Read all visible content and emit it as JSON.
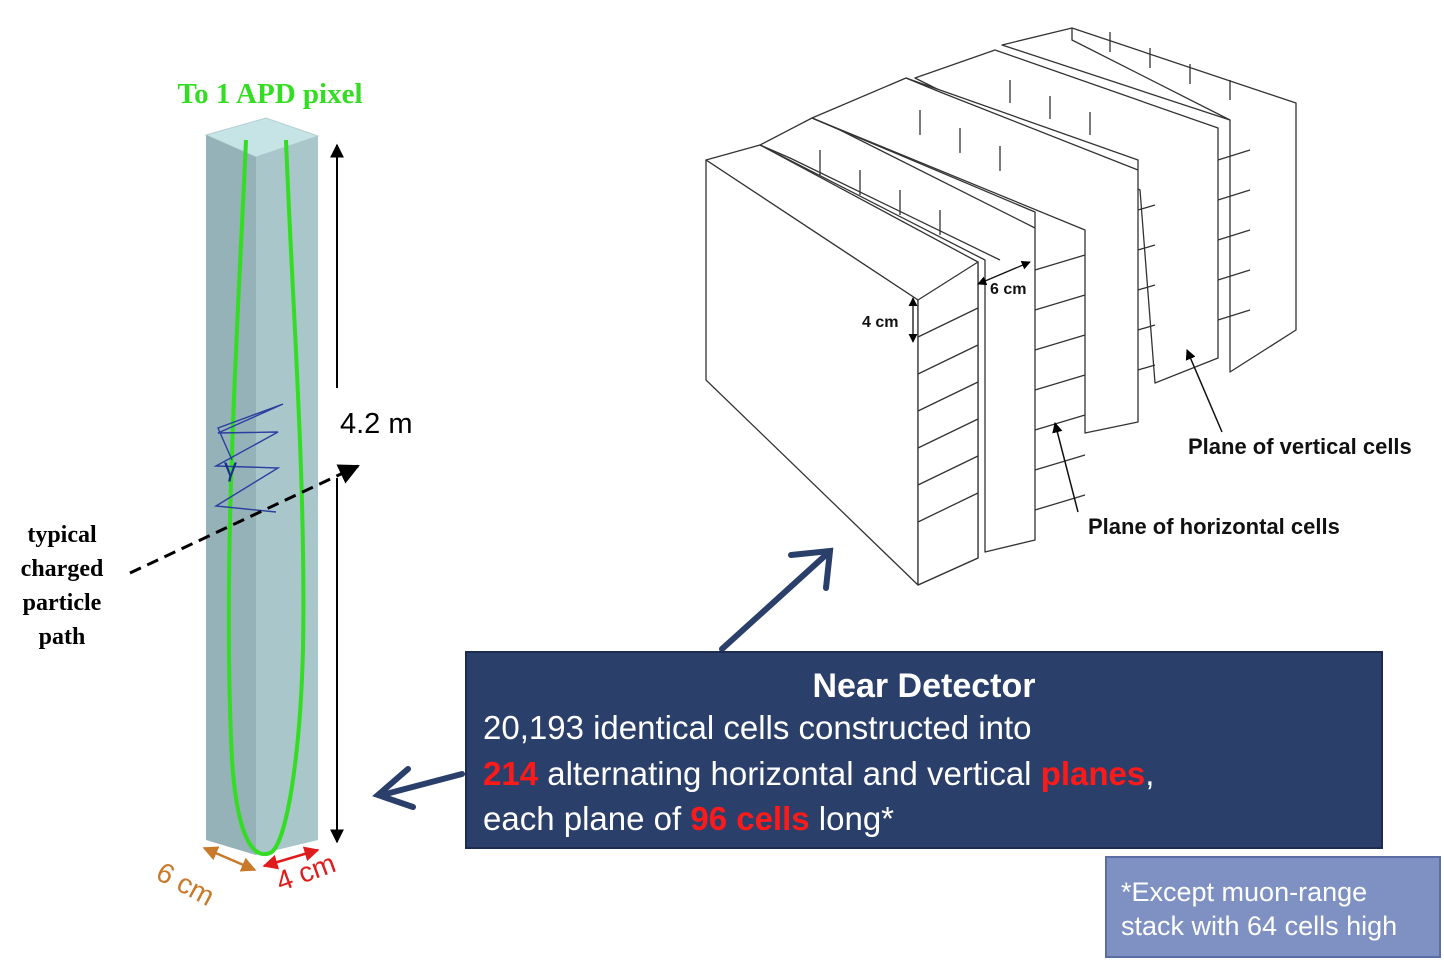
{
  "cell_diagram": {
    "apd_label": "To 1 APD pixel",
    "length_label": "4.2 m",
    "gamma_symbol": "γ",
    "path_label": [
      "typical",
      "charged",
      "particle",
      "path"
    ],
    "width_label": "6 cm",
    "depth_label": "4 cm",
    "colors": {
      "cell_face": "#9fbcc2",
      "fiber": "#33dd22",
      "width_dim": "#c87a2a",
      "depth_dim": "#e01b1b"
    }
  },
  "detector_diagram": {
    "dim_6cm": "6 cm",
    "dim_4cm": "4 cm",
    "label_vertical": "Plane of vertical cells",
    "label_horizontal": "Plane of horizontal cells"
  },
  "info_box": {
    "title": "Near Detector",
    "line1": "20,193 identical cells constructed into",
    "line2": {
      "num": "214",
      "mid": " alternating horizontal and vertical ",
      "word": "planes",
      "end": ","
    },
    "line3": {
      "start": "each plane of ",
      "highlight": "96 cells",
      "end": " long*"
    },
    "colors": {
      "background": "#2b3f6b",
      "highlight": "#ff1a1a"
    }
  },
  "footnote": {
    "line1": "*Except muon-range",
    "line2": "stack with 64 cells high",
    "color": "#7e91c2"
  }
}
